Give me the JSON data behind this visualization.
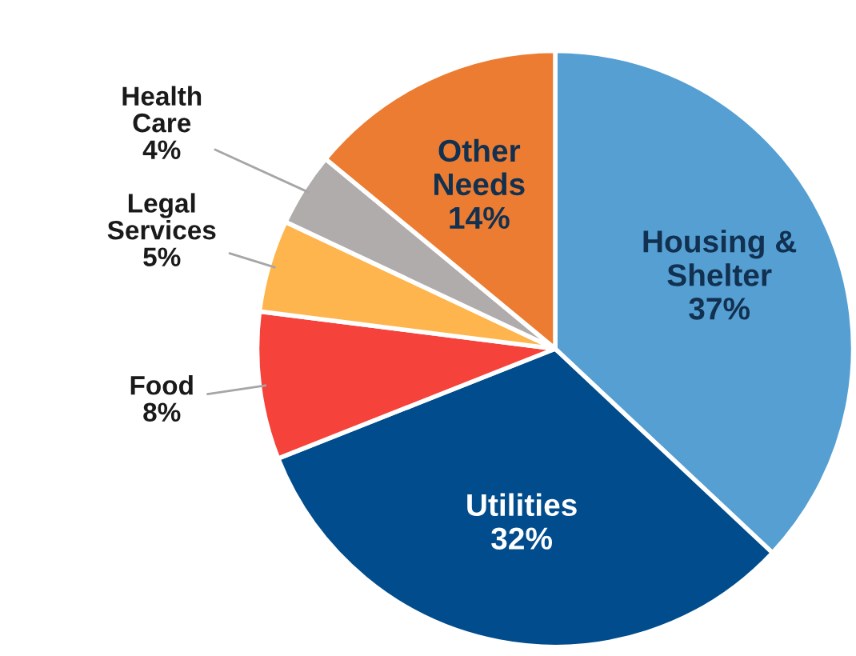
{
  "chart_data": {
    "type": "pie",
    "categories": [
      "Housing & Shelter",
      "Utilities",
      "Food",
      "Legal Services",
      "Health Care",
      "Other Needs"
    ],
    "values": [
      37,
      32,
      8,
      5,
      4,
      14
    ],
    "colors": [
      "#559fd3",
      "#014c8c",
      "#f5423a",
      "#ffb54d",
      "#b0acab",
      "#ec7c31"
    ],
    "value_labels": [
      "37%",
      "32%",
      "8%",
      "5%",
      "4%",
      "14%"
    ]
  }
}
